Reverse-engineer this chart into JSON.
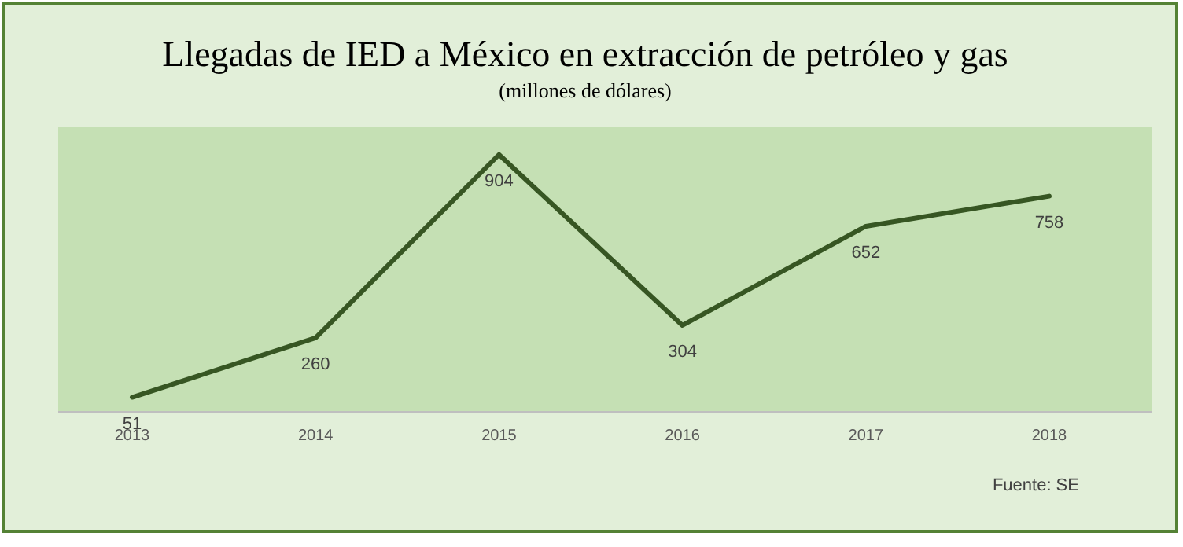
{
  "chart_data": {
    "type": "line",
    "title": "Llegadas de IED a México en extracción de petróleo y gas",
    "subtitle": "(millones de dólares)",
    "categories": [
      "2013",
      "2014",
      "2015",
      "2016",
      "2017",
      "2018"
    ],
    "series": [
      {
        "color": "#375623",
        "values": [
          51,
          260,
          904,
          304,
          652,
          758
        ]
      }
    ],
    "ylim": [
      0,
      1000
    ],
    "tick_labels": "x",
    "data_labels": true,
    "marker": "none",
    "line_style": "solid",
    "annotations": [
      "Fuente: SE"
    ]
  }
}
